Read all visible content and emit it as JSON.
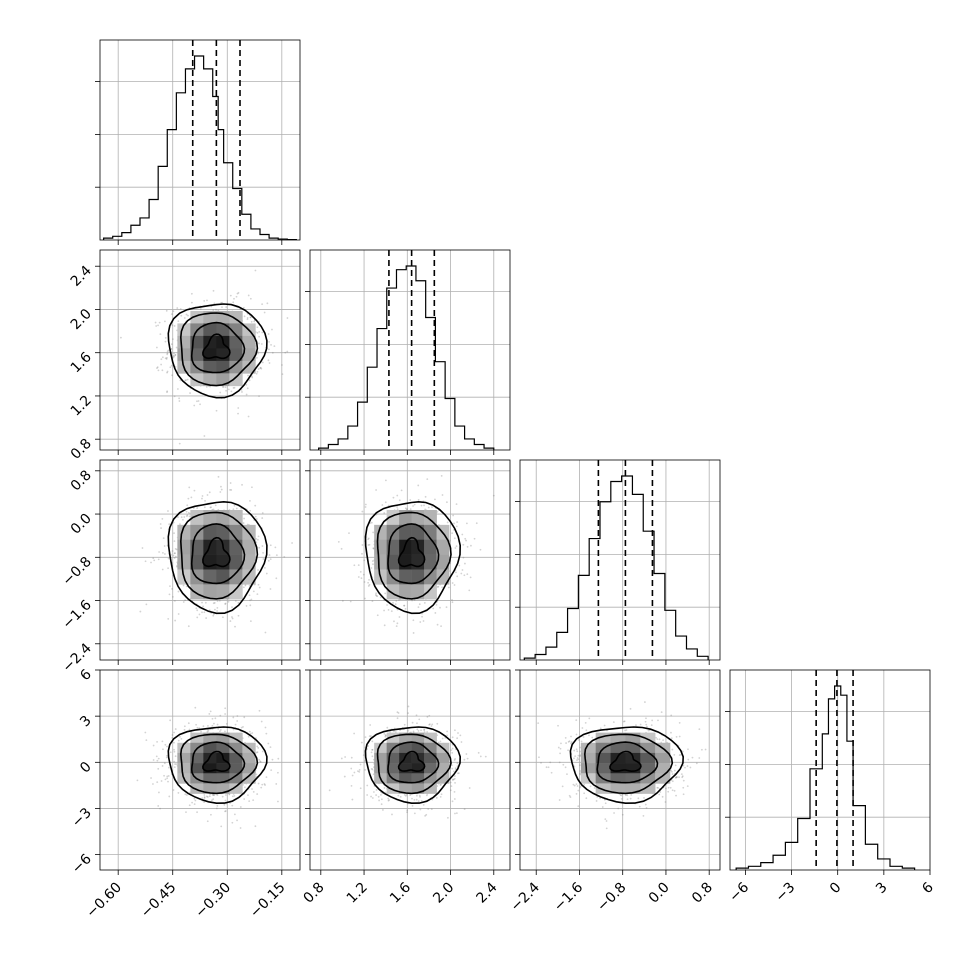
{
  "chart_data": {
    "type": "corner",
    "parameters": [
      {
        "range": [
          -0.65,
          -0.1
        ],
        "ticks": [
          -0.6,
          -0.45,
          -0.3,
          -0.15
        ],
        "tick_labels": [
          "−0.60",
          "−0.45",
          "−0.30",
          "−0.15"
        ],
        "median": -0.33,
        "q16": -0.395,
        "q84": -0.265,
        "sigma": 0.065
      },
      {
        "range": [
          0.7,
          2.55
        ],
        "ticks": [
          0.8,
          1.2,
          1.6,
          2.0,
          2.4
        ],
        "tick_labels": [
          "0.8",
          "1.2",
          "1.6",
          "2.0",
          "2.4"
        ],
        "median": 1.64,
        "q16": 1.43,
        "q84": 1.85,
        "sigma": 0.21
      },
      {
        "range": [
          -2.7,
          1.0
        ],
        "ticks": [
          -2.4,
          -1.6,
          -0.8,
          0.0,
          0.8
        ],
        "tick_labels": [
          "−2.4",
          "−1.6",
          "−0.8",
          "0.0",
          "0.8"
        ],
        "median": -0.75,
        "q16": -1.25,
        "q84": -0.25,
        "sigma": 0.5
      },
      {
        "range": [
          -7.0,
          6.0
        ],
        "ticks": [
          -6,
          -3,
          0,
          3,
          6
        ],
        "tick_labels": [
          "−6",
          "−3",
          "0",
          "3",
          "6"
        ],
        "median": -0.05,
        "q16": -1.4,
        "q84": 1.0,
        "sigma": 1.2
      }
    ],
    "diagonal_histograms": [
      {
        "edges": [
          -0.64,
          -0.615,
          -0.59,
          -0.565,
          -0.54,
          -0.515,
          -0.49,
          -0.465,
          -0.44,
          -0.415,
          -0.39,
          -0.365,
          -0.34,
          -0.325,
          -0.31,
          -0.285,
          -0.26,
          -0.235,
          -0.21,
          -0.185,
          -0.16,
          -0.135,
          -0.11
        ],
        "counts": [
          0.01,
          0.02,
          0.04,
          0.08,
          0.12,
          0.22,
          0.4,
          0.6,
          0.8,
          0.93,
          1.0,
          0.93,
          0.78,
          0.6,
          0.42,
          0.28,
          0.14,
          0.06,
          0.03,
          0.01,
          0.005,
          0.002
        ]
      },
      {
        "edges": [
          0.78,
          0.87,
          0.96,
          1.05,
          1.14,
          1.23,
          1.32,
          1.41,
          1.5,
          1.59,
          1.68,
          1.77,
          1.86,
          1.95,
          2.04,
          2.13,
          2.22,
          2.31,
          2.4
        ],
        "counts": [
          0.01,
          0.03,
          0.06,
          0.13,
          0.26,
          0.45,
          0.66,
          0.88,
          0.98,
          1.0,
          0.92,
          0.72,
          0.48,
          0.28,
          0.13,
          0.06,
          0.03,
          0.01
        ]
      },
      {
        "edges": [
          -2.62,
          -2.42,
          -2.22,
          -2.02,
          -1.82,
          -1.62,
          -1.42,
          -1.22,
          -1.02,
          -0.82,
          -0.62,
          -0.42,
          -0.22,
          -0.02,
          0.18,
          0.38,
          0.58,
          0.78
        ],
        "counts": [
          0.01,
          0.03,
          0.07,
          0.15,
          0.28,
          0.46,
          0.66,
          0.86,
          0.97,
          1.0,
          0.9,
          0.7,
          0.47,
          0.27,
          0.13,
          0.06,
          0.02
        ]
      },
      {
        "edges": [
          -6.6,
          -5.8,
          -5.0,
          -4.2,
          -3.4,
          -2.6,
          -1.8,
          -1.0,
          -0.6,
          -0.2,
          0.2,
          0.6,
          1.0,
          1.8,
          2.6,
          3.4,
          4.2,
          5.0
        ],
        "counts": [
          0.01,
          0.02,
          0.04,
          0.08,
          0.15,
          0.28,
          0.55,
          0.74,
          0.93,
          1.0,
          0.95,
          0.7,
          0.35,
          0.14,
          0.06,
          0.02,
          0.01
        ]
      }
    ],
    "grid": true,
    "scatter_color": "#808080",
    "density_colormap": [
      "#ffffff",
      "#000000"
    ]
  }
}
